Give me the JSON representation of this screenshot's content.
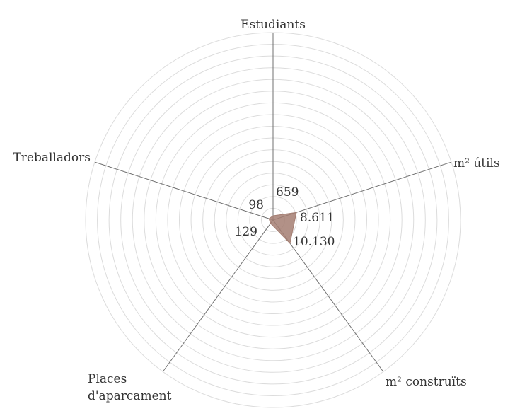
{
  "chart_data": {
    "type": "radar",
    "title": "",
    "axes": [
      {
        "label_lines": [
          "Estudiants"
        ],
        "value": 659,
        "value_label": "659"
      },
      {
        "label_lines": [
          "m² útils"
        ],
        "value": 8611,
        "value_label": "8.611"
      },
      {
        "label_lines": [
          "m² construïts"
        ],
        "value": 10130,
        "value_label": "10.130"
      },
      {
        "label_lines": [
          "Places",
          "d'aparcament"
        ],
        "value": 129,
        "value_label": "129"
      },
      {
        "label_lines": [
          "Treballadors"
        ],
        "value": 98,
        "value_label": "98"
      }
    ],
    "grid": true,
    "grid_rings": 16,
    "colors": {
      "fill": "#a47e72",
      "grid": "#dcdcdc",
      "axis": "#707070",
      "text": "#333333"
    }
  }
}
